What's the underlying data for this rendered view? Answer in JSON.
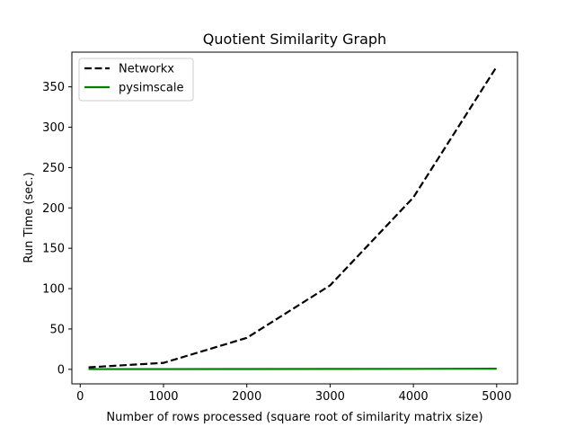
{
  "chart_data": {
    "type": "line",
    "title": "Quotient Similarity Graph",
    "xlabel": "Number of rows processed (square root of similarity matrix size)",
    "ylabel": "Run Time (sec.)",
    "xlim": [
      -100,
      5250
    ],
    "ylim": [
      -18,
      393
    ],
    "xticks": [
      0,
      1000,
      2000,
      3000,
      4000,
      5000
    ],
    "yticks": [
      0,
      50,
      100,
      150,
      200,
      250,
      300,
      350
    ],
    "grid": false,
    "legend_position": "top-left",
    "series": [
      {
        "name": "Networkx",
        "color": "#000000",
        "style": "dashed",
        "x": [
          100,
          1000,
          2000,
          3000,
          4000,
          5000
        ],
        "y": [
          2.5,
          8,
          39,
          104,
          213,
          375
        ]
      },
      {
        "name": "pysimscale",
        "color": "#008000",
        "style": "solid",
        "x": [
          100,
          1000,
          2000,
          3000,
          4000,
          5000
        ],
        "y": [
          0.3,
          0.3,
          0.4,
          0.5,
          0.6,
          0.8
        ]
      }
    ]
  }
}
